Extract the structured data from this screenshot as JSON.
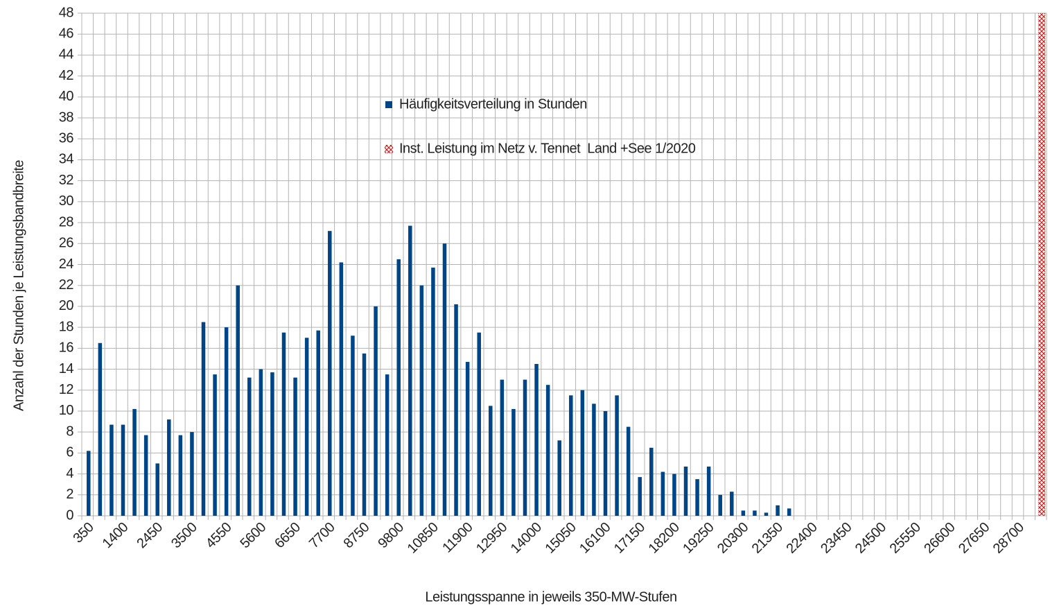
{
  "chart_data": {
    "type": "bar",
    "y_label": "Anzahl der Stunden je Leistungsbandbreite",
    "x_label": "Leistungsspanne in jeweils 350-MW-Stufen",
    "categories": [
      "350",
      null,
      null,
      "1400",
      null,
      null,
      "2450",
      null,
      null,
      "3500",
      null,
      null,
      "4550",
      null,
      null,
      "5600",
      null,
      null,
      "6650",
      null,
      null,
      "7700",
      null,
      null,
      "8750",
      null,
      null,
      "9800",
      null,
      null,
      "10850",
      null,
      null,
      "11900",
      null,
      null,
      "12950",
      null,
      null,
      "14000",
      null,
      null,
      "15050",
      null,
      null,
      "16100",
      null,
      null,
      "17150",
      null,
      null,
      "18200",
      null,
      null,
      "19250",
      null,
      null,
      "20300",
      null,
      null,
      "21350",
      null,
      null,
      "22400",
      null,
      null,
      "23450",
      null,
      null,
      "24500",
      null,
      null,
      "25550",
      null,
      null,
      "26600",
      null,
      null,
      "27650",
      null,
      null,
      "28700",
      null,
      null
    ],
    "series": [
      {
        "name": "Häufigkeitsverteilung in Stunden",
        "color": "#004586",
        "values": [
          6.2,
          16.5,
          8.7,
          8.7,
          10.2,
          7.7,
          5.0,
          9.2,
          7.7,
          8.0,
          18.5,
          13.5,
          18.0,
          22.0,
          13.2,
          14.0,
          13.7,
          17.5,
          13.2,
          17.0,
          17.7,
          27.2,
          24.2,
          17.2,
          15.5,
          20.0,
          13.5,
          24.5,
          27.7,
          22.0,
          23.7,
          26.0,
          20.2,
          14.7,
          17.5,
          10.5,
          13.0,
          10.2,
          13.0,
          14.5,
          12.5,
          7.2,
          11.5,
          12.0,
          10.7,
          10.0,
          11.5,
          8.5,
          3.7,
          6.5,
          4.2,
          4.0,
          4.7,
          3.5,
          4.7,
          2.0,
          2.3,
          0.5,
          0.5,
          0.3,
          1.0,
          0.7,
          null,
          null,
          null,
          null,
          null,
          null,
          null,
          null,
          null,
          null,
          null,
          null,
          null,
          null,
          null,
          null,
          null,
          null,
          null,
          null,
          null,
          null
        ]
      },
      {
        "name": "Inst. Leistung im Netz v. Tennet  Land +See 1/2020",
        "color": "#c9211e",
        "values": [
          null,
          null,
          null,
          null,
          null,
          null,
          null,
          null,
          null,
          null,
          null,
          null,
          null,
          null,
          null,
          null,
          null,
          null,
          null,
          null,
          null,
          null,
          null,
          null,
          null,
          null,
          null,
          null,
          null,
          null,
          null,
          null,
          null,
          null,
          null,
          null,
          null,
          null,
          null,
          null,
          null,
          null,
          null,
          null,
          null,
          null,
          null,
          null,
          null,
          null,
          null,
          null,
          null,
          null,
          null,
          null,
          null,
          null,
          null,
          null,
          null,
          null,
          null,
          null,
          null,
          null,
          null,
          null,
          null,
          null,
          null,
          null,
          null,
          null,
          null,
          null,
          null,
          null,
          null,
          null,
          null,
          null,
          null,
          48
        ]
      }
    ],
    "ylim": [
      0,
      48
    ],
    "yticks": [
      0,
      2,
      4,
      6,
      8,
      10,
      12,
      14,
      16,
      18,
      20,
      22,
      24,
      26,
      28,
      30,
      32,
      34,
      36,
      38,
      40,
      42,
      44,
      46,
      48
    ],
    "grid": true
  }
}
